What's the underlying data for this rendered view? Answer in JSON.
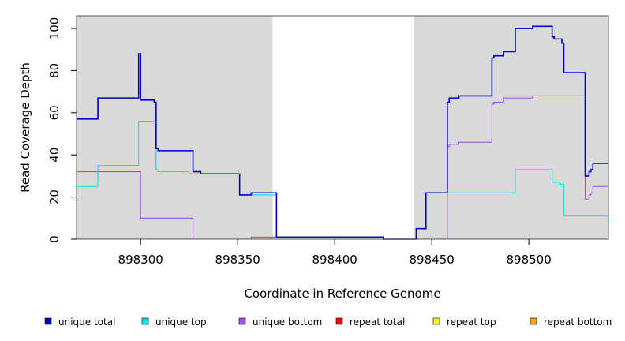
{
  "chart_data": {
    "type": "line",
    "xlabel": "Coordinate in Reference Genome",
    "ylabel": "Read Coverage Depth",
    "xlim": [
      898267,
      898541
    ],
    "ylim": [
      0,
      106
    ],
    "x_ticks": [
      898300,
      898350,
      898400,
      898450,
      898500
    ],
    "x_tick_labels": [
      "898300",
      "898350",
      "898400",
      "898450",
      "898500"
    ],
    "y_ticks": [
      0,
      20,
      40,
      60,
      80,
      100
    ],
    "y_tick_labels": [
      "0",
      "20",
      "40",
      "60",
      "80",
      "100"
    ],
    "grid": false,
    "shaded_regions": [
      {
        "x0": 898267,
        "x1": 898368,
        "color": "#d9d9d9"
      },
      {
        "x0": 898441,
        "x1": 898541,
        "color": "#d9d9d9"
      }
    ],
    "legend_position": "bottom",
    "series": [
      {
        "name": "unique total",
        "color": "#0000cd",
        "points": [
          [
            898267,
            57
          ],
          [
            898278,
            57
          ],
          [
            898278,
            67
          ],
          [
            898299,
            67
          ],
          [
            898299,
            88
          ],
          [
            898300,
            88
          ],
          [
            898300,
            66
          ],
          [
            898307,
            66
          ],
          [
            898307,
            65
          ],
          [
            898308,
            65
          ],
          [
            898308,
            43
          ],
          [
            898309,
            43
          ],
          [
            898309,
            42
          ],
          [
            898327,
            42
          ],
          [
            898327,
            32
          ],
          [
            898331,
            32
          ],
          [
            898331,
            31
          ],
          [
            898351,
            31
          ],
          [
            898351,
            21
          ],
          [
            898357,
            21
          ],
          [
            898357,
            22
          ],
          [
            898370,
            22
          ],
          [
            898370,
            1
          ],
          [
            898425,
            1
          ],
          [
            898425,
            0
          ],
          [
            898442,
            0
          ],
          [
            898442,
            5
          ],
          [
            898447,
            5
          ],
          [
            898447,
            22
          ],
          [
            898458,
            22
          ],
          [
            898458,
            65
          ],
          [
            898459,
            65
          ],
          [
            898459,
            67
          ],
          [
            898464,
            67
          ],
          [
            898464,
            68
          ],
          [
            898481,
            68
          ],
          [
            898481,
            86
          ],
          [
            898482,
            86
          ],
          [
            898482,
            87
          ],
          [
            898487,
            87
          ],
          [
            898487,
            89
          ],
          [
            898493,
            89
          ],
          [
            898493,
            100
          ],
          [
            898502,
            100
          ],
          [
            898502,
            101
          ],
          [
            898512,
            101
          ],
          [
            898512,
            96
          ],
          [
            898513,
            96
          ],
          [
            898513,
            95
          ],
          [
            898517,
            95
          ],
          [
            898517,
            93
          ],
          [
            898518,
            93
          ],
          [
            898518,
            79
          ],
          [
            898529,
            79
          ],
          [
            898529,
            30
          ],
          [
            898531,
            30
          ],
          [
            898531,
            32
          ],
          [
            898532,
            32
          ],
          [
            898532,
            33
          ],
          [
            898533,
            33
          ],
          [
            898533,
            36
          ],
          [
            898541,
            36
          ]
        ]
      },
      {
        "name": "unique top",
        "color": "#00e5ee",
        "points": [
          [
            898267,
            25
          ],
          [
            898278,
            25
          ],
          [
            898278,
            35
          ],
          [
            898299,
            35
          ],
          [
            898299,
            56
          ],
          [
            898308,
            56
          ],
          [
            898308,
            33
          ],
          [
            898309,
            33
          ],
          [
            898309,
            32
          ],
          [
            898325,
            32
          ],
          [
            898325,
            31
          ],
          [
            898351,
            31
          ],
          [
            898351,
            21
          ],
          [
            898370,
            21
          ],
          [
            898370,
            1
          ],
          [
            898425,
            1
          ],
          [
            898425,
            0
          ],
          [
            898442,
            0
          ],
          [
            898442,
            5
          ],
          [
            898447,
            5
          ],
          [
            898447,
            22
          ],
          [
            898493,
            22
          ],
          [
            898493,
            33
          ],
          [
            898512,
            33
          ],
          [
            898512,
            27
          ],
          [
            898516,
            27
          ],
          [
            898516,
            26
          ],
          [
            898518,
            26
          ],
          [
            898518,
            11
          ],
          [
            898541,
            11
          ]
        ]
      },
      {
        "name": "unique bottom",
        "color": "#a050e8",
        "points": [
          [
            898267,
            32
          ],
          [
            898300,
            32
          ],
          [
            898300,
            10
          ],
          [
            898327,
            10
          ],
          [
            898327,
            0
          ],
          [
            898357,
            0
          ],
          [
            898357,
            1
          ],
          [
            898425,
            1
          ],
          [
            898425,
            0
          ],
          [
            898458,
            0
          ],
          [
            898458,
            44
          ],
          [
            898459,
            44
          ],
          [
            898459,
            45
          ],
          [
            898464,
            45
          ],
          [
            898464,
            46
          ],
          [
            898481,
            46
          ],
          [
            898481,
            64
          ],
          [
            898482,
            64
          ],
          [
            898482,
            65
          ],
          [
            898487,
            65
          ],
          [
            898487,
            67
          ],
          [
            898502,
            67
          ],
          [
            898502,
            68
          ],
          [
            898529,
            68
          ],
          [
            898529,
            19
          ],
          [
            898531,
            19
          ],
          [
            898531,
            21
          ],
          [
            898532,
            21
          ],
          [
            898532,
            22
          ],
          [
            898533,
            22
          ],
          [
            898533,
            25
          ],
          [
            898541,
            25
          ]
        ]
      },
      {
        "name": "repeat total",
        "color": "#ff0000",
        "points": [
          [
            898267,
            0
          ],
          [
            898541,
            0
          ]
        ]
      },
      {
        "name": "repeat top",
        "color": "#ffff00",
        "points": [
          [
            898267,
            0
          ],
          [
            898541,
            0
          ]
        ]
      },
      {
        "name": "repeat bottom",
        "color": "#ffa500",
        "points": [
          [
            898267,
            0
          ],
          [
            898541,
            0
          ]
        ]
      }
    ]
  }
}
